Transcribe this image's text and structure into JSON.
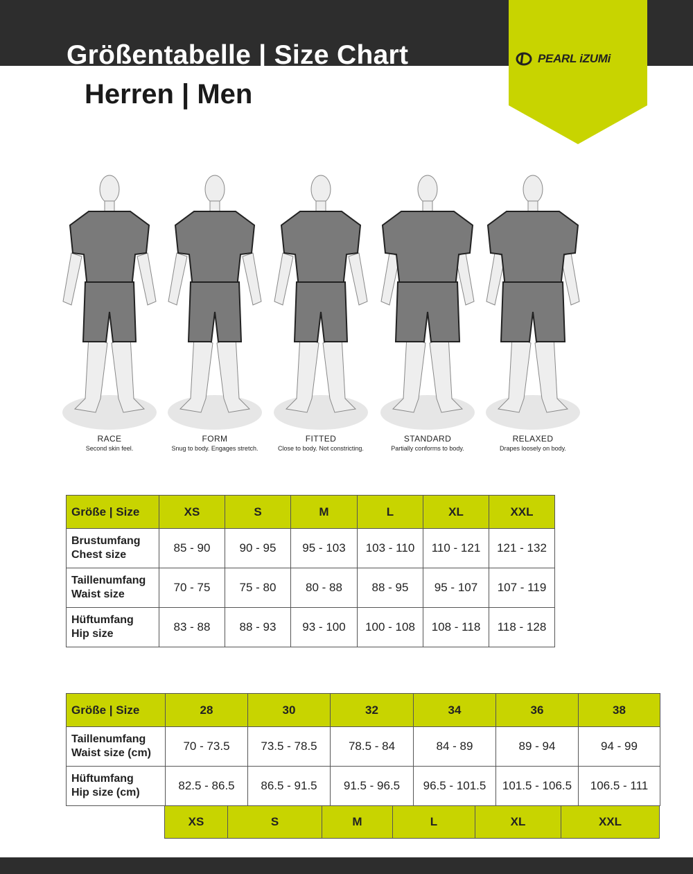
{
  "header": {
    "title": "Größentabelle | Size Chart",
    "subtitle": "Herren | Men",
    "brand": "PEARL iZUMi",
    "brand_color": "#c8d400",
    "dark_color": "#2d2d2d"
  },
  "fits": [
    {
      "name": "RACE",
      "desc": "Second skin feel."
    },
    {
      "name": "FORM",
      "desc": "Snug to body. Engages stretch."
    },
    {
      "name": "FITTED",
      "desc": "Close to body. Not constricting."
    },
    {
      "name": "STANDARD",
      "desc": "Partially conforms to body."
    },
    {
      "name": "RELAXED",
      "desc": "Drapes loosely on body."
    }
  ],
  "table1": {
    "header": [
      "Größe | Size",
      "XS",
      "S",
      "M",
      "L",
      "XL",
      "XXL"
    ],
    "rows": [
      {
        "label": [
          "Brustumfang",
          "Chest size"
        ],
        "values": [
          "85 - 90",
          "90 - 95",
          "95 - 103",
          "103 - 110",
          "110 - 121",
          "121 - 132"
        ]
      },
      {
        "label": [
          "Taillenumfang",
          "Waist size"
        ],
        "values": [
          "70 - 75",
          "75 - 80",
          "80 - 88",
          "88 - 95",
          "95 - 107",
          "107 - 119"
        ]
      },
      {
        "label": [
          "Hüftumfang",
          "Hip size"
        ],
        "values": [
          "83 - 88",
          "88 - 93",
          "93 - 100",
          "100 - 108",
          "108 - 118",
          "118 - 128"
        ]
      }
    ]
  },
  "table2": {
    "header": [
      "Größe | Size",
      "28",
      "30",
      "32",
      "34",
      "36",
      "38"
    ],
    "rows": [
      {
        "label": [
          "Taillenumfang",
          "Waist size (cm)"
        ],
        "values": [
          "70 - 73.5",
          "73.5 - 78.5",
          "78.5 - 84",
          "84 - 89",
          "89 - 94",
          "94 - 99"
        ]
      },
      {
        "label": [
          "Hüftumfang",
          "Hip size (cm)"
        ],
        "values": [
          "82.5 - 86.5",
          "86.5 - 91.5",
          "91.5 - 96.5",
          "96.5 - 101.5",
          "101.5 - 106.5",
          "106.5 - 111"
        ]
      }
    ],
    "letter_sizes": [
      "XS",
      "S",
      "M",
      "L",
      "XL",
      "XXL"
    ]
  }
}
